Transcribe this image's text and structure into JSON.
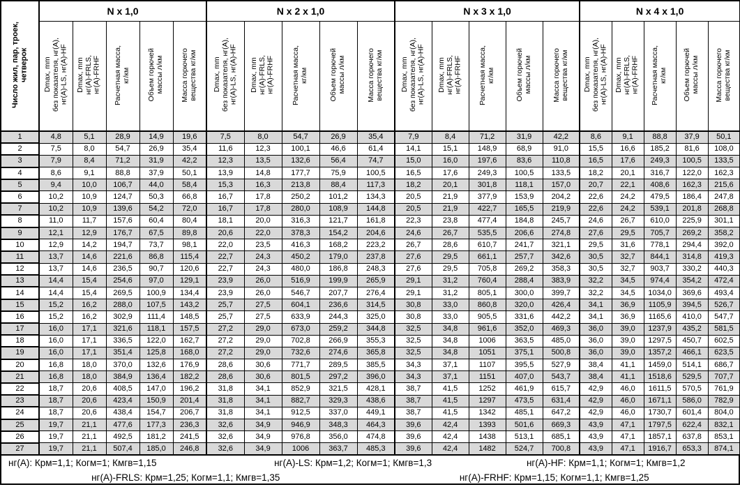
{
  "table": {
    "corner_header": "Число жил, пар, троек,\nчетверок",
    "groups": [
      {
        "title": "N x 1,0"
      },
      {
        "title": "N x 2 x 1,0"
      },
      {
        "title": "N x 3 x 1,0"
      },
      {
        "title": "N x 4 x 1,0"
      }
    ],
    "sub_headers": [
      "Dmax, mm\nбез показателя, нг(А),\nнг(А)-LS, нг(А)-HF",
      "Dmax, mm\nнг(А)-FRLS,\nнг(А)-FRHF",
      "Расчетная масса,\nкг/км",
      "Объем горючей\nмассы л/км",
      "Масса горючего\nвещества кг/км"
    ],
    "shading": {
      "odd_row_bg": "#d9d9d9",
      "even_row_bg": "#ffffff"
    },
    "rows": [
      {
        "n": "1",
        "cells": [
          "4,8",
          "5,1",
          "28,9",
          "14,9",
          "19,6",
          "7,5",
          "8,0",
          "54,7",
          "26,9",
          "35,4",
          "7,9",
          "8,4",
          "71,2",
          "31,9",
          "42,2",
          "8,6",
          "9,1",
          "88,8",
          "37,9",
          "50,1"
        ]
      },
      {
        "n": "2",
        "cells": [
          "7,5",
          "8,0",
          "54,7",
          "26,9",
          "35,4",
          "11,6",
          "12,3",
          "100,1",
          "46,6",
          "61,4",
          "14,1",
          "15,1",
          "148,9",
          "68,9",
          "91,0",
          "15,5",
          "16,6",
          "185,2",
          "81,6",
          "108,0"
        ]
      },
      {
        "n": "3",
        "cells": [
          "7,9",
          "8,4",
          "71,2",
          "31,9",
          "42,2",
          "12,3",
          "13,5",
          "132,6",
          "56,4",
          "74,7",
          "15,0",
          "16,0",
          "197,6",
          "83,6",
          "110,8",
          "16,5",
          "17,6",
          "249,3",
          "100,5",
          "133,5"
        ]
      },
      {
        "n": "4",
        "cells": [
          "8,6",
          "9,1",
          "88,8",
          "37,9",
          "50,1",
          "13,9",
          "14,8",
          "177,7",
          "75,9",
          "100,5",
          "16,5",
          "17,6",
          "249,3",
          "100,5",
          "133,5",
          "18,2",
          "20,1",
          "316,7",
          "122,0",
          "162,3"
        ]
      },
      {
        "n": "5",
        "cells": [
          "9,4",
          "10,0",
          "106,7",
          "44,0",
          "58,4",
          "15,3",
          "16,3",
          "213,8",
          "88,4",
          "117,3",
          "18,2",
          "20,1",
          "301,8",
          "118,1",
          "157,0",
          "20,7",
          "22,1",
          "408,6",
          "162,3",
          "215,6"
        ]
      },
      {
        "n": "6",
        "cells": [
          "10,2",
          "10,9",
          "124,7",
          "50,3",
          "66,8",
          "16,7",
          "17,8",
          "250,2",
          "101,2",
          "134,3",
          "20,5",
          "21,9",
          "377,9",
          "153,9",
          "204,2",
          "22,6",
          "24,2",
          "479,5",
          "186,4",
          "247,8"
        ]
      },
      {
        "n": "7",
        "cells": [
          "10,2",
          "10,9",
          "139,6",
          "54,2",
          "72,0",
          "16,7",
          "17,8",
          "280,0",
          "108,9",
          "144,8",
          "20,5",
          "21,9",
          "422,7",
          "165,5",
          "219,9",
          "22,6",
          "24,2",
          "539,1",
          "201,8",
          "268,8"
        ]
      },
      {
        "n": "8",
        "cells": [
          "11,0",
          "11,7",
          "157,6",
          "60,4",
          "80,4",
          "18,1",
          "20,0",
          "316,3",
          "121,7",
          "161,8",
          "22,3",
          "23,8",
          "477,4",
          "184,8",
          "245,7",
          "24,6",
          "26,7",
          "610,0",
          "225,9",
          "301,1"
        ]
      },
      {
        "n": "9",
        "cells": [
          "12,1",
          "12,9",
          "176,7",
          "67,5",
          "89,8",
          "20,6",
          "22,0",
          "378,3",
          "154,2",
          "204,6",
          "24,6",
          "26,7",
          "535,5",
          "206,6",
          "274,8",
          "27,6",
          "29,5",
          "705,7",
          "269,2",
          "358,2"
        ]
      },
      {
        "n": "10",
        "cells": [
          "12,9",
          "14,2",
          "194,7",
          "73,7",
          "98,1",
          "22,0",
          "23,5",
          "416,3",
          "168,2",
          "223,2",
          "26,7",
          "28,6",
          "610,7",
          "241,7",
          "321,1",
          "29,5",
          "31,6",
          "778,1",
          "294,4",
          "392,0"
        ]
      },
      {
        "n": "11",
        "cells": [
          "13,7",
          "14,6",
          "221,6",
          "86,8",
          "115,4",
          "22,7",
          "24,3",
          "450,2",
          "179,0",
          "237,8",
          "27,6",
          "29,5",
          "661,1",
          "257,7",
          "342,6",
          "30,5",
          "32,7",
          "844,1",
          "314,8",
          "419,3"
        ]
      },
      {
        "n": "12",
        "cells": [
          "13,7",
          "14,6",
          "236,5",
          "90,7",
          "120,6",
          "22,7",
          "24,3",
          "480,0",
          "186,8",
          "248,3",
          "27,6",
          "29,5",
          "705,8",
          "269,2",
          "358,3",
          "30,5",
          "32,7",
          "903,7",
          "330,2",
          "440,3"
        ]
      },
      {
        "n": "13",
        "cells": [
          "14,4",
          "15,4",
          "254,6",
          "97,0",
          "129,1",
          "23,9",
          "26,0",
          "516,9",
          "199,9",
          "265,9",
          "29,1",
          "31,2",
          "760,4",
          "288,4",
          "383,9",
          "32,2",
          "34,5",
          "974,4",
          "354,2",
          "472,4"
        ]
      },
      {
        "n": "14",
        "cells": [
          "14,4",
          "15,4",
          "269,5",
          "100,9",
          "134,4",
          "23,9",
          "26,0",
          "546,7",
          "207,7",
          "276,4",
          "29,1",
          "31,2",
          "805,1",
          "300,0",
          "399,7",
          "32,2",
          "34,5",
          "1034,0",
          "369,6",
          "493,4"
        ]
      },
      {
        "n": "15",
        "cells": [
          "15,2",
          "16,2",
          "288,0",
          "107,5",
          "143,2",
          "25,7",
          "27,5",
          "604,1",
          "236,6",
          "314,5",
          "30,8",
          "33,0",
          "860,8",
          "320,0",
          "426,4",
          "34,1",
          "36,9",
          "1105,9",
          "394,5",
          "526,7"
        ]
      },
      {
        "n": "16",
        "cells": [
          "15,2",
          "16,2",
          "302,9",
          "111,4",
          "148,5",
          "25,7",
          "27,5",
          "633,9",
          "244,3",
          "325,0",
          "30,8",
          "33,0",
          "905,5",
          "331,6",
          "442,2",
          "34,1",
          "36,9",
          "1165,6",
          "410,0",
          "547,7"
        ]
      },
      {
        "n": "17",
        "cells": [
          "16,0",
          "17,1",
          "321,6",
          "118,1",
          "157,5",
          "27,2",
          "29,0",
          "673,0",
          "259,2",
          "344,8",
          "32,5",
          "34,8",
          "961,6",
          "352,0",
          "469,3",
          "36,0",
          "39,0",
          "1237,9",
          "435,2",
          "581,5"
        ]
      },
      {
        "n": "18",
        "cells": [
          "16,0",
          "17,1",
          "336,5",
          "122,0",
          "162,7",
          "27,2",
          "29,0",
          "702,8",
          "266,9",
          "355,3",
          "32,5",
          "34,8",
          "1006",
          "363,5",
          "485,0",
          "36,0",
          "39,0",
          "1297,5",
          "450,7",
          "602,5"
        ]
      },
      {
        "n": "19",
        "cells": [
          "16,0",
          "17,1",
          "351,4",
          "125,8",
          "168,0",
          "27,2",
          "29,0",
          "732,6",
          "274,6",
          "365,8",
          "32,5",
          "34,8",
          "1051",
          "375,1",
          "500,8",
          "36,0",
          "39,0",
          "1357,2",
          "466,1",
          "623,5"
        ]
      },
      {
        "n": "20",
        "cells": [
          "16,8",
          "18,0",
          "370,0",
          "132,6",
          "176,9",
          "28,6",
          "30,6",
          "771,7",
          "289,5",
          "385,5",
          "34,3",
          "37,1",
          "1107",
          "395,5",
          "527,9",
          "38,4",
          "41,1",
          "1459,0",
          "514,1",
          "686,7"
        ]
      },
      {
        "n": "21",
        "cells": [
          "16,8",
          "18,0",
          "384,9",
          "136,4",
          "182,2",
          "28,6",
          "30,6",
          "801,5",
          "297,2",
          "396,0",
          "34,3",
          "37,1",
          "1151",
          "407,0",
          "543,7",
          "38,4",
          "41,1",
          "1518,6",
          "529,5",
          "707,7"
        ]
      },
      {
        "n": "22",
        "cells": [
          "18,7",
          "20,6",
          "408,5",
          "147,0",
          "196,2",
          "31,8",
          "34,1",
          "852,9",
          "321,5",
          "428,1",
          "38,7",
          "41,5",
          "1252",
          "461,9",
          "615,7",
          "42,9",
          "46,0",
          "1611,5",
          "570,5",
          "761,9"
        ]
      },
      {
        "n": "23",
        "cells": [
          "18,7",
          "20,6",
          "423,4",
          "150,9",
          "201,4",
          "31,8",
          "34,1",
          "882,7",
          "329,3",
          "438,6",
          "38,7",
          "41,5",
          "1297",
          "473,5",
          "631,4",
          "42,9",
          "46,0",
          "1671,1",
          "586,0",
          "782,9"
        ]
      },
      {
        "n": "24",
        "cells": [
          "18,7",
          "20,6",
          "438,4",
          "154,7",
          "206,7",
          "31,8",
          "34,1",
          "912,5",
          "337,0",
          "449,1",
          "38,7",
          "41,5",
          "1342",
          "485,1",
          "647,2",
          "42,9",
          "46,0",
          "1730,7",
          "601,4",
          "804,0"
        ]
      },
      {
        "n": "25",
        "cells": [
          "19,7",
          "21,1",
          "477,6",
          "177,3",
          "236,3",
          "32,6",
          "34,9",
          "946,9",
          "348,3",
          "464,3",
          "39,6",
          "42,4",
          "1393",
          "501,6",
          "669,3",
          "43,9",
          "47,1",
          "1797,5",
          "622,4",
          "832,1"
        ]
      },
      {
        "n": "26",
        "cells": [
          "19,7",
          "21,1",
          "492,5",
          "181,2",
          "241,5",
          "32,6",
          "34,9",
          "976,8",
          "356,0",
          "474,8",
          "39,6",
          "42,4",
          "1438",
          "513,1",
          "685,1",
          "43,9",
          "47,1",
          "1857,1",
          "637,8",
          "853,1"
        ]
      },
      {
        "n": "27",
        "cells": [
          "19,7",
          "21,1",
          "507,4",
          "185,0",
          "246,8",
          "32,6",
          "34,9",
          "1006",
          "363,7",
          "485,3",
          "39,6",
          "42,4",
          "1482",
          "524,7",
          "700,8",
          "43,9",
          "47,1",
          "1916,7",
          "653,3",
          "874,1"
        ]
      }
    ]
  },
  "footer": {
    "line1": [
      "нг(А): Крм=1,1;  Когм=1;  Кмгв=1,15",
      "нг(А)-LS: Крм=1,2;  Когм=1;  Кмгв=1,3",
      "нг(А)-HF: Крм=1,1;  Когм=1;  Кмгв=1,2"
    ],
    "line2": [
      "нг(А)-FRLS: Крм=1,25;  Когм=1,1;  Кмгв=1,35",
      "нг(А)-FRHF: Крм=1,15;  Когм=1,1;  Кмгв=1,25"
    ]
  }
}
